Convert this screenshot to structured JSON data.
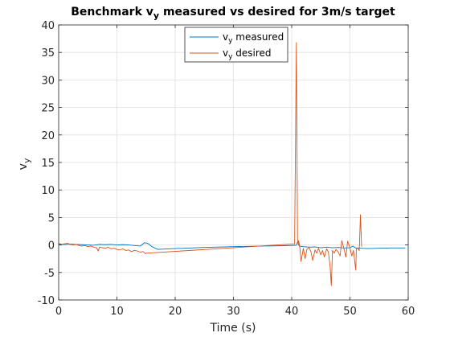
{
  "chart_data": {
    "type": "line",
    "title": {
      "prefix": "Benchmark v",
      "sub": "y",
      "suffix": " measured vs desired for 3m/s target"
    },
    "xlabel": "Time (s)",
    "ylabel": {
      "main": "v",
      "sub": "y"
    },
    "xlim": [
      0,
      60
    ],
    "ylim": [
      -10,
      40
    ],
    "x_ticks": [
      0,
      10,
      20,
      30,
      40,
      50,
      60
    ],
    "y_ticks": [
      -10,
      -5,
      0,
      5,
      10,
      15,
      20,
      25,
      30,
      35,
      40
    ],
    "x_tick_labels": [
      "0",
      "10",
      "20",
      "30",
      "40",
      "50",
      "60"
    ],
    "y_tick_labels": [
      "-10",
      "-5",
      "0",
      "5",
      "10",
      "15",
      "20",
      "25",
      "30",
      "35",
      "40"
    ],
    "grid": true,
    "legend_position": "top-center",
    "series": [
      {
        "name": {
          "main": "v",
          "sub": "y",
          "rest": " measured"
        },
        "color": "#0072BD",
        "x": [
          0,
          1,
          2,
          3,
          4,
          5,
          6,
          7,
          8,
          9,
          10,
          11,
          12,
          13,
          14,
          14.7,
          15.3,
          16,
          17,
          20,
          25,
          30,
          35,
          38,
          40,
          40.8,
          41,
          41.3,
          42,
          43,
          44,
          45,
          46,
          47,
          48,
          49,
          50,
          50.5,
          51,
          52,
          53,
          55,
          57,
          59.5
        ],
        "y": [
          0.05,
          0.1,
          0.15,
          0.1,
          0.05,
          0,
          -0.05,
          0.1,
          0.05,
          0.1,
          0,
          0.05,
          0,
          -0.1,
          -0.2,
          0.4,
          0.3,
          -0.3,
          -0.8,
          -0.65,
          -0.45,
          -0.3,
          -0.2,
          -0.15,
          -0.1,
          -0.05,
          0.5,
          -0.2,
          -0.3,
          -0.4,
          -0.35,
          -0.5,
          -0.4,
          -0.5,
          -0.45,
          -0.55,
          -0.5,
          -0.2,
          -0.55,
          -0.6,
          -0.65,
          -0.6,
          -0.55,
          -0.55
        ]
      },
      {
        "name": {
          "main": "v",
          "sub": "y",
          "rest": " desired"
        },
        "color": "#D95319",
        "x": [
          0,
          0.5,
          1,
          1.5,
          2,
          2.5,
          3,
          3.5,
          4,
          4.5,
          5,
          5.5,
          6,
          6.5,
          6.8,
          7,
          7.5,
          8,
          8.5,
          9,
          9.5,
          10,
          10.5,
          11,
          11.5,
          12,
          12.5,
          13,
          13.5,
          14,
          14.5,
          14.9,
          15,
          40.5,
          40.8,
          41,
          41.1,
          41.2,
          41.4,
          41.6,
          42,
          42.3,
          42.6,
          43,
          43.3,
          43.6,
          44,
          44.3,
          44.6,
          45,
          45.3,
          45.6,
          46,
          46.3,
          46.6,
          46.8,
          47,
          47.3,
          47.6,
          48,
          48.3,
          48.6,
          49,
          49.3,
          49.6,
          50,
          50.3,
          50.6,
          51,
          51.1,
          51.3,
          51.6,
          51.8,
          52
        ],
        "y": [
          0.3,
          0.1,
          0.2,
          0.3,
          0.1,
          0,
          0.1,
          -0.1,
          -0.2,
          -0.1,
          -0.3,
          -0.2,
          -0.4,
          -0.5,
          -1.1,
          -0.4,
          -0.5,
          -0.6,
          -0.4,
          -0.7,
          -0.6,
          -0.8,
          -0.9,
          -0.7,
          -1.0,
          -0.9,
          -1.2,
          -1.0,
          -1.1,
          -1.3,
          -1.2,
          -1.6,
          -1.5,
          0.2,
          36.8,
          1.0,
          0.2,
          0.8,
          -0.5,
          -3.0,
          -0.6,
          -2.5,
          -0.8,
          -0.5,
          -1.2,
          -2.8,
          -0.9,
          -1.5,
          -0.6,
          -1.8,
          -1.0,
          -2.2,
          -0.7,
          -1.3,
          -4.0,
          -7.4,
          -1.0,
          -1.5,
          -0.8,
          -1.3,
          -2.0,
          0.8,
          -0.8,
          -2.2,
          0.7,
          -0.5,
          -2.0,
          -1.0,
          -4.6,
          -0.5,
          -0.6,
          -1.0,
          5.5,
          -0.3
        ]
      }
    ]
  }
}
